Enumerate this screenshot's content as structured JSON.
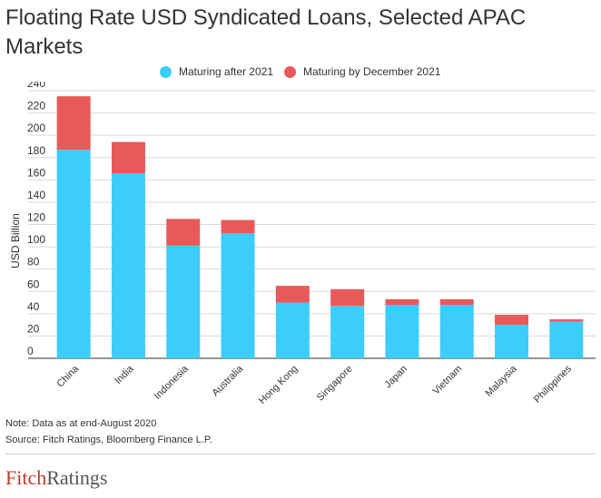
{
  "title": "Floating Rate USD Syndicated Loans, Selected APAC Markets",
  "legend": [
    {
      "label": "Maturing after 2021",
      "color": "#3ccdfc"
    },
    {
      "label": "Maturing by December 2021",
      "color": "#e85a5a"
    }
  ],
  "note": "Note: Data as at end-August 2020",
  "source": "Source: Fitch Ratings, Bloomberg Finance L.P.",
  "logo": {
    "part1": "Fitch",
    "part2": "Ratings"
  },
  "chart_data": {
    "type": "bar",
    "stacked": true,
    "categories": [
      "China",
      "India",
      "Indonesia",
      "Australia",
      "Hong Kong",
      "Singapore",
      "Japan",
      "Vietnam",
      "Malaysia",
      "Philippines"
    ],
    "series": [
      {
        "name": "Maturing after 2021",
        "values": [
          187,
          166,
          101,
          112,
          50,
          47,
          48,
          48,
          30,
          33
        ],
        "color": "#3ccdfc"
      },
      {
        "name": "Maturing by December 2021",
        "values": [
          48,
          28,
          24,
          12,
          15,
          15,
          5,
          5,
          9,
          2
        ],
        "color": "#e85a5a"
      }
    ],
    "ylabel": "USD Billion",
    "ylim": [
      0,
      240
    ],
    "yticks": [
      0,
      20,
      40,
      60,
      80,
      100,
      120,
      140,
      160,
      180,
      200,
      220,
      240
    ],
    "grid": true,
    "legend_position": "top-center"
  }
}
